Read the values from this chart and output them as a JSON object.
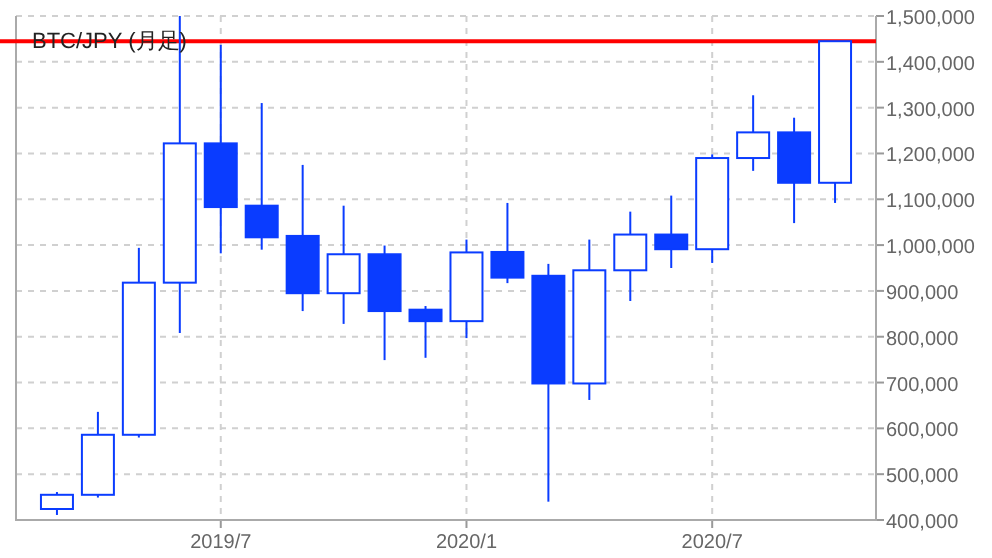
{
  "chart_data": {
    "type": "candlestick",
    "title": "BTC/JPY (月足)",
    "x": [
      "2019-03",
      "2019-04",
      "2019-05",
      "2019-06",
      "2019-07",
      "2019-08",
      "2019-09",
      "2019-10",
      "2019-11",
      "2019-12",
      "2020-01",
      "2020-02",
      "2020-03",
      "2020-04",
      "2020-05",
      "2020-06",
      "2020-07",
      "2020-08",
      "2020-09",
      "2020-10"
    ],
    "series": [
      {
        "color": "#0a3cff",
        "ohlc": [
          [
            424000,
            461000,
            411000,
            455000
          ],
          [
            455000,
            636000,
            449000,
            586000
          ],
          [
            586000,
            994000,
            580000,
            918000
          ],
          [
            918000,
            1500000,
            808000,
            1222000
          ],
          [
            1222000,
            1437000,
            982000,
            1083000
          ],
          [
            1086000,
            1310000,
            990000,
            1017000
          ],
          [
            1020000,
            1175000,
            856000,
            895000
          ],
          [
            895000,
            1086000,
            828000,
            980000
          ],
          [
            980000,
            999000,
            749000,
            856000
          ],
          [
            859000,
            867000,
            754000,
            834000
          ],
          [
            834000,
            1012000,
            797000,
            984000
          ],
          [
            985000,
            1092000,
            917000,
            929000
          ],
          [
            933000,
            959000,
            440000,
            698000
          ],
          [
            698000,
            1012000,
            662000,
            945000
          ],
          [
            945000,
            1073000,
            878000,
            1023000
          ],
          [
            1023000,
            1108000,
            950000,
            991000
          ],
          [
            991000,
            1198000,
            961000,
            1190000
          ],
          [
            1190000,
            1327000,
            1162000,
            1246000
          ],
          [
            1246000,
            1278000,
            1048000,
            1136000
          ],
          [
            1136000,
            1445000,
            1092000,
            1445000
          ]
        ]
      }
    ],
    "xlim": [
      "2019-02",
      "2020-11"
    ],
    "xticks": [
      {
        "value": "2019-07",
        "label": "2019/7"
      },
      {
        "value": "2020-01",
        "label": "2020/1"
      },
      {
        "value": "2020-07",
        "label": "2020/7"
      }
    ],
    "ylim": [
      400000,
      1500000
    ],
    "yticks": [
      {
        "value": 400000,
        "label": "400,000"
      },
      {
        "value": 500000,
        "label": "500,000"
      },
      {
        "value": 600000,
        "label": "600,000"
      },
      {
        "value": 700000,
        "label": "700,000"
      },
      {
        "value": 800000,
        "label": "800,000"
      },
      {
        "value": 900000,
        "label": "900,000"
      },
      {
        "value": 1000000,
        "label": "1,000,000"
      },
      {
        "value": 1100000,
        "label": "1,100,000"
      },
      {
        "value": 1200000,
        "label": "1,200,000"
      },
      {
        "value": 1300000,
        "label": "1,300,000"
      },
      {
        "value": 1400000,
        "label": "1,400,000"
      },
      {
        "value": 1500000,
        "label": "1,500,000"
      }
    ],
    "grid": true,
    "ref_lines": [
      {
        "axis": "y",
        "value": 1445000,
        "color": "#ff0000"
      }
    ]
  }
}
